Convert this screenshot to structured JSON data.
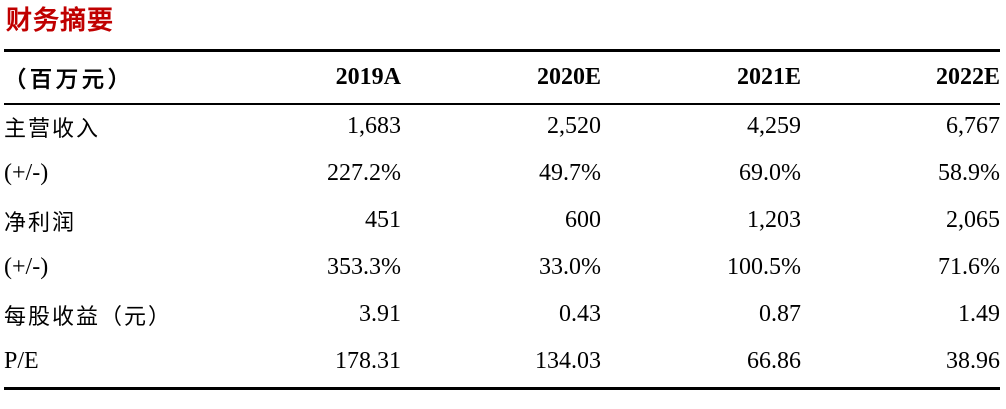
{
  "title": "财务摘要",
  "table": {
    "header": [
      "（百万元）",
      "2019A",
      "2020E",
      "2021E",
      "2022E"
    ],
    "rows": [
      {
        "label": "主营收入",
        "values": [
          "1,683",
          "2,520",
          "4,259",
          "6,767"
        ]
      },
      {
        "label": "(+/-)",
        "values": [
          "227.2%",
          "49.7%",
          "69.0%",
          "58.9%"
        ]
      },
      {
        "label": "净利润",
        "values": [
          "451",
          "600",
          "1,203",
          "2,065"
        ]
      },
      {
        "label": "(+/-)",
        "values": [
          "353.3%",
          "33.0%",
          "100.5%",
          "71.6%"
        ]
      },
      {
        "label": "每股收益（元）",
        "values": [
          "3.91",
          "0.43",
          "0.87",
          "1.49"
        ]
      },
      {
        "label": "P/E",
        "values": [
          "178.31",
          "134.03",
          "66.86",
          "38.96"
        ]
      }
    ]
  },
  "colors": {
    "title": "#C00000",
    "rule": "#000000"
  }
}
